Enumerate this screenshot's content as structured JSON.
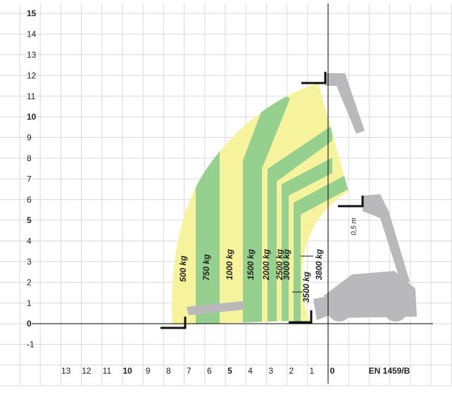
{
  "y_axis": {
    "ticks": [
      "15",
      "14",
      "13",
      "12",
      "11",
      "10",
      "9",
      "8",
      "7",
      "6",
      "5",
      "4",
      "3",
      "2",
      "1",
      "0",
      "-1"
    ]
  },
  "x_axis": {
    "ticks": [
      "13",
      "12",
      "11",
      "10",
      "9",
      "8",
      "7",
      "6",
      "5",
      "4",
      "3",
      "2",
      "1",
      "0"
    ]
  },
  "load_labels": [
    "500 kg",
    "750 kg",
    "1000 kg",
    "1500 kg",
    "2000 kg",
    "2500 kg",
    "3000 kg",
    "3500 kg",
    "3800 kg"
  ],
  "annotation": "0,5 m",
  "standard": "EN 1459/B"
}
